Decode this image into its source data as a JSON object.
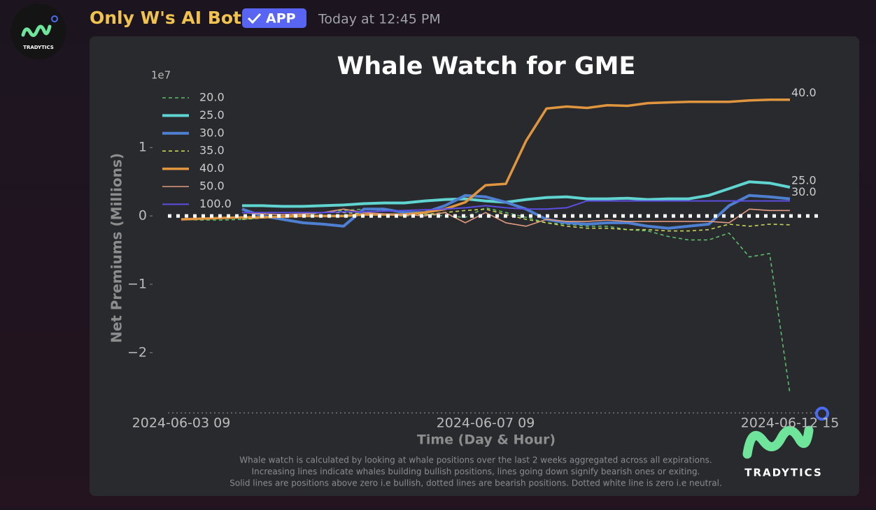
{
  "message": {
    "author": "Only W's AI Bot",
    "badge": "APP",
    "timestamp": "Today at 12:45 PM",
    "avatar_text": "TRADYTICS"
  },
  "chart_data": {
    "type": "line",
    "title": "Whale Watch for GME",
    "offset_label": "1e7",
    "ylabel": "Net Premiums (Millions)",
    "xlabel": "Time (Day & Hour)",
    "categories": [
      "2024-06-03 09",
      null,
      null,
      null,
      null,
      null,
      null,
      null,
      null,
      null,
      null,
      null,
      null,
      null,
      null,
      "2024-06-07 09",
      null,
      null,
      null,
      null,
      null,
      null,
      null,
      null,
      null,
      null,
      null,
      null,
      null,
      null,
      "2024-06-12 15"
    ],
    "ylim": [
      -2.87,
      1.83
    ],
    "yticks": [
      {
        "value": -2,
        "label": "−2"
      },
      {
        "value": -1,
        "label": "−1"
      },
      0,
      1
    ],
    "zero_line": true,
    "series": [
      {
        "name": "20.0",
        "color": "#5dbb6b",
        "style": "dashed",
        "width": 1.6,
        "end_label": false,
        "values": [
          -0.05,
          -0.06,
          -0.06,
          -0.05,
          -0.03,
          -0.02,
          0.02,
          0.05,
          0.08,
          0.1,
          0.08,
          0.05,
          0.03,
          0.0,
          -0.02,
          0.12,
          0.05,
          -0.02,
          -0.1,
          -0.12,
          -0.15,
          -0.15,
          -0.2,
          -0.22,
          -0.3,
          -0.35,
          -0.35,
          -0.25,
          -0.6,
          -0.55,
          -2.6
        ]
      },
      {
        "name": "25.0",
        "color": "#5fd4d0",
        "style": "solid",
        "width": 4,
        "end_label": true,
        "values": [
          null,
          null,
          null,
          0.15,
          0.15,
          0.14,
          0.14,
          0.15,
          0.16,
          0.18,
          0.19,
          0.19,
          0.22,
          0.24,
          0.25,
          0.22,
          0.2,
          0.24,
          0.27,
          0.28,
          0.25,
          0.25,
          0.26,
          0.24,
          0.25,
          0.25,
          0.3,
          0.4,
          0.5,
          0.48,
          0.42
        ]
      },
      {
        "name": "30.0",
        "color": "#4f7fd1",
        "style": "solid",
        "width": 4,
        "end_label": true,
        "values": [
          null,
          null,
          null,
          0.1,
          0.0,
          -0.05,
          -0.1,
          -0.12,
          -0.15,
          0.1,
          0.1,
          0.05,
          0.05,
          0.15,
          0.3,
          0.28,
          0.2,
          0.1,
          -0.05,
          -0.1,
          -0.12,
          -0.1,
          -0.1,
          -0.15,
          -0.18,
          -0.15,
          -0.12,
          0.15,
          0.3,
          0.28,
          0.25
        ]
      },
      {
        "name": "35.0",
        "color": "#c8d45a",
        "style": "dashed",
        "width": 1.6,
        "end_label": false,
        "values": [
          null,
          null,
          null,
          -0.05,
          -0.03,
          0.0,
          0.03,
          0.05,
          0.05,
          0.03,
          0.02,
          0.0,
          0.02,
          0.05,
          0.08,
          0.1,
          0.02,
          -0.05,
          -0.1,
          -0.15,
          -0.18,
          -0.18,
          -0.2,
          -0.2,
          -0.22,
          -0.22,
          -0.2,
          -0.12,
          -0.15,
          -0.12,
          -0.13
        ]
      },
      {
        "name": "40.0",
        "color": "#e0953f",
        "style": "solid",
        "width": 3.5,
        "end_label": true,
        "values": [
          -0.05,
          -0.04,
          -0.03,
          -0.02,
          -0.02,
          -0.01,
          0.0,
          0.0,
          0.0,
          0.02,
          0.02,
          0.02,
          0.05,
          0.1,
          0.2,
          0.45,
          0.47,
          1.1,
          1.57,
          1.6,
          1.58,
          1.62,
          1.61,
          1.65,
          1.66,
          1.67,
          1.67,
          1.67,
          1.69,
          1.7,
          1.7
        ]
      },
      {
        "name": "50.0",
        "color": "#e09a80",
        "style": "solid",
        "width": 1.6,
        "end_label": false,
        "values": [
          null,
          null,
          null,
          0.05,
          0.03,
          0.02,
          0.03,
          0.05,
          0.1,
          0.05,
          0.03,
          0.02,
          0.0,
          0.05,
          -0.1,
          0.05,
          -0.1,
          -0.15,
          -0.05,
          -0.08,
          -0.08,
          -0.06,
          -0.08,
          -0.08,
          -0.08,
          -0.08,
          -0.08,
          -0.1,
          0.1,
          0.08,
          0.08
        ]
      },
      {
        "name": "100.0",
        "color": "#5b4ee0",
        "style": "solid",
        "width": 2,
        "end_label": false,
        "values": [
          null,
          null,
          null,
          0.05,
          0.05,
          0.05,
          0.05,
          0.05,
          0.06,
          0.06,
          0.07,
          0.08,
          0.09,
          0.1,
          0.12,
          0.15,
          0.12,
          0.1,
          0.1,
          0.12,
          0.22,
          0.22,
          0.22,
          0.22,
          0.22,
          0.22,
          0.22,
          0.22,
          0.22,
          0.22,
          0.22
        ]
      }
    ],
    "footnote": [
      "Whale watch is calculated by looking at whale positions over the last 2 weeks aggregated across all expirations.",
      "Increasing lines indicate whales building bullish positions, lines going down signify bearish ones or exiting.",
      "Solid lines are positions above zero i.e bullish, dotted lines are bearish positions. Dotted white line is zero i.e neutral."
    ],
    "logo_text": "TRADYTICS"
  }
}
